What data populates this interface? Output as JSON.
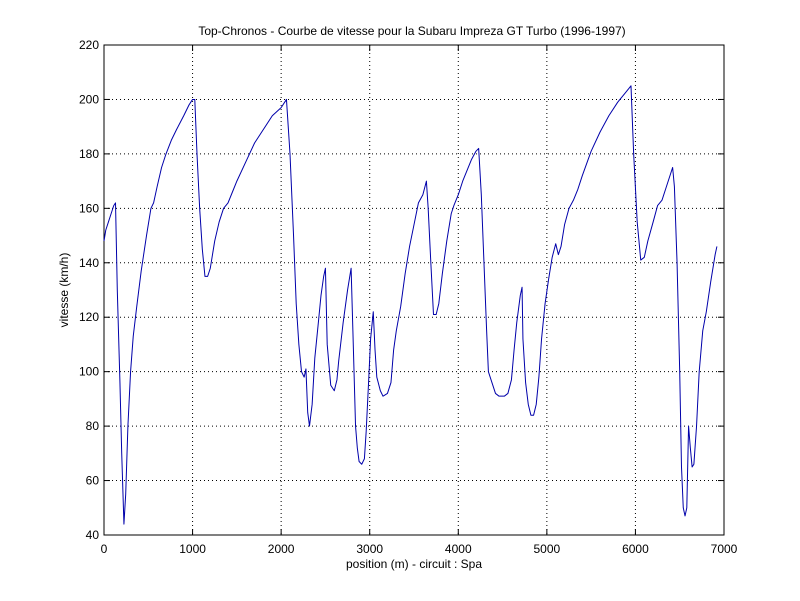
{
  "chart_data": {
    "type": "line",
    "title": "Top-Chronos - Courbe de vitesse pour la Subaru Impreza GT Turbo (1996-1997)",
    "xlabel": "position (m) - circuit : Spa",
    "ylabel": "vitesse (km/h)",
    "xlim": [
      0,
      7000
    ],
    "ylim": [
      40,
      220
    ],
    "xticks": [
      0,
      1000,
      2000,
      3000,
      4000,
      5000,
      6000,
      7000
    ],
    "yticks": [
      40,
      60,
      80,
      100,
      120,
      140,
      160,
      180,
      200,
      220
    ],
    "grid": true,
    "line_color": "#0000aa",
    "series": [
      {
        "name": "",
        "points": [
          [
            0,
            148
          ],
          [
            20,
            152
          ],
          [
            50,
            155
          ],
          [
            80,
            158
          ],
          [
            110,
            161
          ],
          [
            130,
            162
          ],
          [
            150,
            130
          ],
          [
            180,
            96
          ],
          [
            200,
            70
          ],
          [
            225,
            44
          ],
          [
            245,
            55
          ],
          [
            270,
            80
          ],
          [
            300,
            100
          ],
          [
            330,
            113
          ],
          [
            370,
            124
          ],
          [
            420,
            137
          ],
          [
            480,
            150
          ],
          [
            530,
            160
          ],
          [
            560,
            162
          ],
          [
            600,
            168
          ],
          [
            650,
            175
          ],
          [
            700,
            180
          ],
          [
            760,
            185
          ],
          [
            820,
            189
          ],
          [
            900,
            194
          ],
          [
            960,
            198
          ],
          [
            1000,
            200
          ],
          [
            1025,
            200
          ],
          [
            1050,
            180
          ],
          [
            1080,
            160
          ],
          [
            1110,
            145
          ],
          [
            1140,
            135
          ],
          [
            1170,
            135
          ],
          [
            1200,
            138
          ],
          [
            1250,
            148
          ],
          [
            1300,
            155
          ],
          [
            1350,
            160
          ],
          [
            1400,
            162
          ],
          [
            1450,
            166
          ],
          [
            1500,
            170
          ],
          [
            1600,
            177
          ],
          [
            1700,
            184
          ],
          [
            1800,
            189
          ],
          [
            1900,
            194
          ],
          [
            2000,
            197
          ],
          [
            2060,
            200
          ],
          [
            2100,
            180
          ],
          [
            2140,
            150
          ],
          [
            2170,
            125
          ],
          [
            2200,
            110
          ],
          [
            2230,
            100
          ],
          [
            2260,
            98
          ],
          [
            2280,
            101
          ],
          [
            2300,
            85
          ],
          [
            2320,
            80
          ],
          [
            2350,
            88
          ],
          [
            2380,
            105
          ],
          [
            2420,
            118
          ],
          [
            2450,
            128
          ],
          [
            2480,
            135
          ],
          [
            2500,
            138
          ],
          [
            2520,
            110
          ],
          [
            2560,
            95
          ],
          [
            2600,
            93
          ],
          [
            2630,
            97
          ],
          [
            2650,
            104
          ],
          [
            2700,
            118
          ],
          [
            2750,
            130
          ],
          [
            2790,
            138
          ],
          [
            2810,
            115
          ],
          [
            2840,
            80
          ],
          [
            2860,
            72
          ],
          [
            2880,
            67
          ],
          [
            2910,
            66
          ],
          [
            2940,
            68
          ],
          [
            2960,
            78
          ],
          [
            2990,
            98
          ],
          [
            3010,
            112
          ],
          [
            3040,
            122
          ],
          [
            3060,
            108
          ],
          [
            3080,
            98
          ],
          [
            3120,
            93
          ],
          [
            3150,
            91
          ],
          [
            3200,
            92
          ],
          [
            3240,
            96
          ],
          [
            3270,
            108
          ],
          [
            3300,
            115
          ],
          [
            3350,
            124
          ],
          [
            3400,
            136
          ],
          [
            3450,
            146
          ],
          [
            3500,
            154
          ],
          [
            3550,
            162
          ],
          [
            3600,
            165
          ],
          [
            3640,
            170
          ],
          [
            3660,
            160
          ],
          [
            3690,
            140
          ],
          [
            3720,
            121
          ],
          [
            3750,
            121
          ],
          [
            3780,
            125
          ],
          [
            3820,
            136
          ],
          [
            3870,
            148
          ],
          [
            3920,
            158
          ],
          [
            3950,
            161
          ],
          [
            4000,
            165
          ],
          [
            4050,
            170
          ],
          [
            4100,
            174
          ],
          [
            4150,
            178
          ],
          [
            4200,
            181
          ],
          [
            4230,
            182
          ],
          [
            4260,
            165
          ],
          [
            4290,
            140
          ],
          [
            4320,
            115
          ],
          [
            4340,
            100
          ],
          [
            4380,
            96
          ],
          [
            4420,
            92
          ],
          [
            4460,
            91
          ],
          [
            4520,
            91
          ],
          [
            4560,
            92
          ],
          [
            4600,
            97
          ],
          [
            4630,
            108
          ],
          [
            4660,
            118
          ],
          [
            4700,
            128
          ],
          [
            4720,
            131
          ],
          [
            4730,
            112
          ],
          [
            4760,
            96
          ],
          [
            4790,
            88
          ],
          [
            4820,
            84
          ],
          [
            4850,
            84
          ],
          [
            4880,
            88
          ],
          [
            4910,
            98
          ],
          [
            4940,
            112
          ],
          [
            4980,
            125
          ],
          [
            5020,
            134
          ],
          [
            5060,
            142
          ],
          [
            5100,
            147
          ],
          [
            5130,
            143
          ],
          [
            5160,
            146
          ],
          [
            5200,
            154
          ],
          [
            5250,
            160
          ],
          [
            5300,
            163
          ],
          [
            5350,
            167
          ],
          [
            5400,
            172
          ],
          [
            5500,
            181
          ],
          [
            5600,
            188
          ],
          [
            5700,
            194
          ],
          [
            5800,
            199
          ],
          [
            5900,
            203
          ],
          [
            5950,
            205
          ],
          [
            5980,
            180
          ],
          [
            6020,
            155
          ],
          [
            6060,
            141
          ],
          [
            6100,
            142
          ],
          [
            6140,
            148
          ],
          [
            6200,
            155
          ],
          [
            6250,
            161
          ],
          [
            6300,
            163
          ],
          [
            6330,
            166
          ],
          [
            6380,
            171
          ],
          [
            6420,
            175
          ],
          [
            6440,
            168
          ],
          [
            6470,
            140
          ],
          [
            6500,
            100
          ],
          [
            6520,
            65
          ],
          [
            6540,
            50
          ],
          [
            6560,
            47
          ],
          [
            6580,
            50
          ],
          [
            6600,
            80
          ],
          [
            6620,
            72
          ],
          [
            6640,
            65
          ],
          [
            6660,
            66
          ],
          [
            6690,
            80
          ],
          [
            6720,
            100
          ],
          [
            6760,
            115
          ],
          [
            6800,
            122
          ],
          [
            6850,
            133
          ],
          [
            6900,
            143
          ],
          [
            6920,
            146
          ]
        ]
      }
    ]
  }
}
